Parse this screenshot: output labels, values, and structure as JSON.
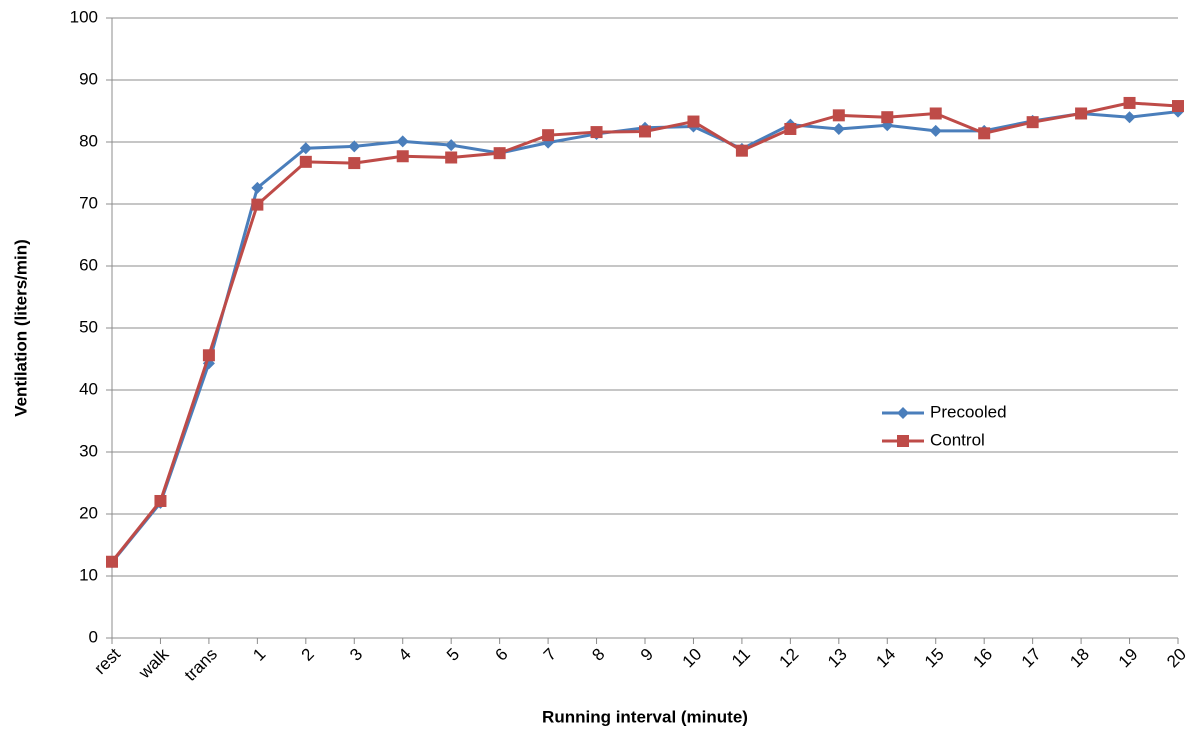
{
  "chart_data": {
    "type": "line",
    "x_label": "Running interval (minute)",
    "y_label": "Ventilation (liters/min)",
    "categories": [
      "rest",
      "walk",
      "trans",
      "1",
      "2",
      "3",
      "4",
      "5",
      "6",
      "7",
      "8",
      "9",
      "10",
      "11",
      "12",
      "13",
      "14",
      "15",
      "16",
      "17",
      "18",
      "19",
      "20"
    ],
    "series": [
      {
        "name": "Precooled",
        "color": "#4a7ebb",
        "marker": "diamond",
        "values": [
          12.2,
          21.8,
          44.3,
          72.6,
          79.0,
          79.3,
          80.1,
          79.5,
          78.2,
          79.9,
          81.3,
          82.3,
          82.5,
          78.9,
          82.8,
          82.1,
          82.7,
          81.8,
          81.8,
          83.4,
          84.6,
          84.0,
          84.9
        ]
      },
      {
        "name": "Control",
        "color": "#be4b48",
        "marker": "square",
        "values": [
          12.3,
          22.1,
          45.6,
          69.9,
          76.8,
          76.6,
          77.7,
          77.5,
          78.2,
          81.1,
          81.6,
          81.7,
          83.3,
          78.6,
          82.1,
          84.3,
          84.0,
          84.6,
          81.4,
          83.2,
          84.6,
          86.3,
          85.8
        ]
      }
    ],
    "ylim": [
      0,
      100
    ],
    "yticks": [
      0,
      10,
      20,
      30,
      40,
      50,
      60,
      70,
      80,
      90,
      100
    ],
    "grid": true
  }
}
